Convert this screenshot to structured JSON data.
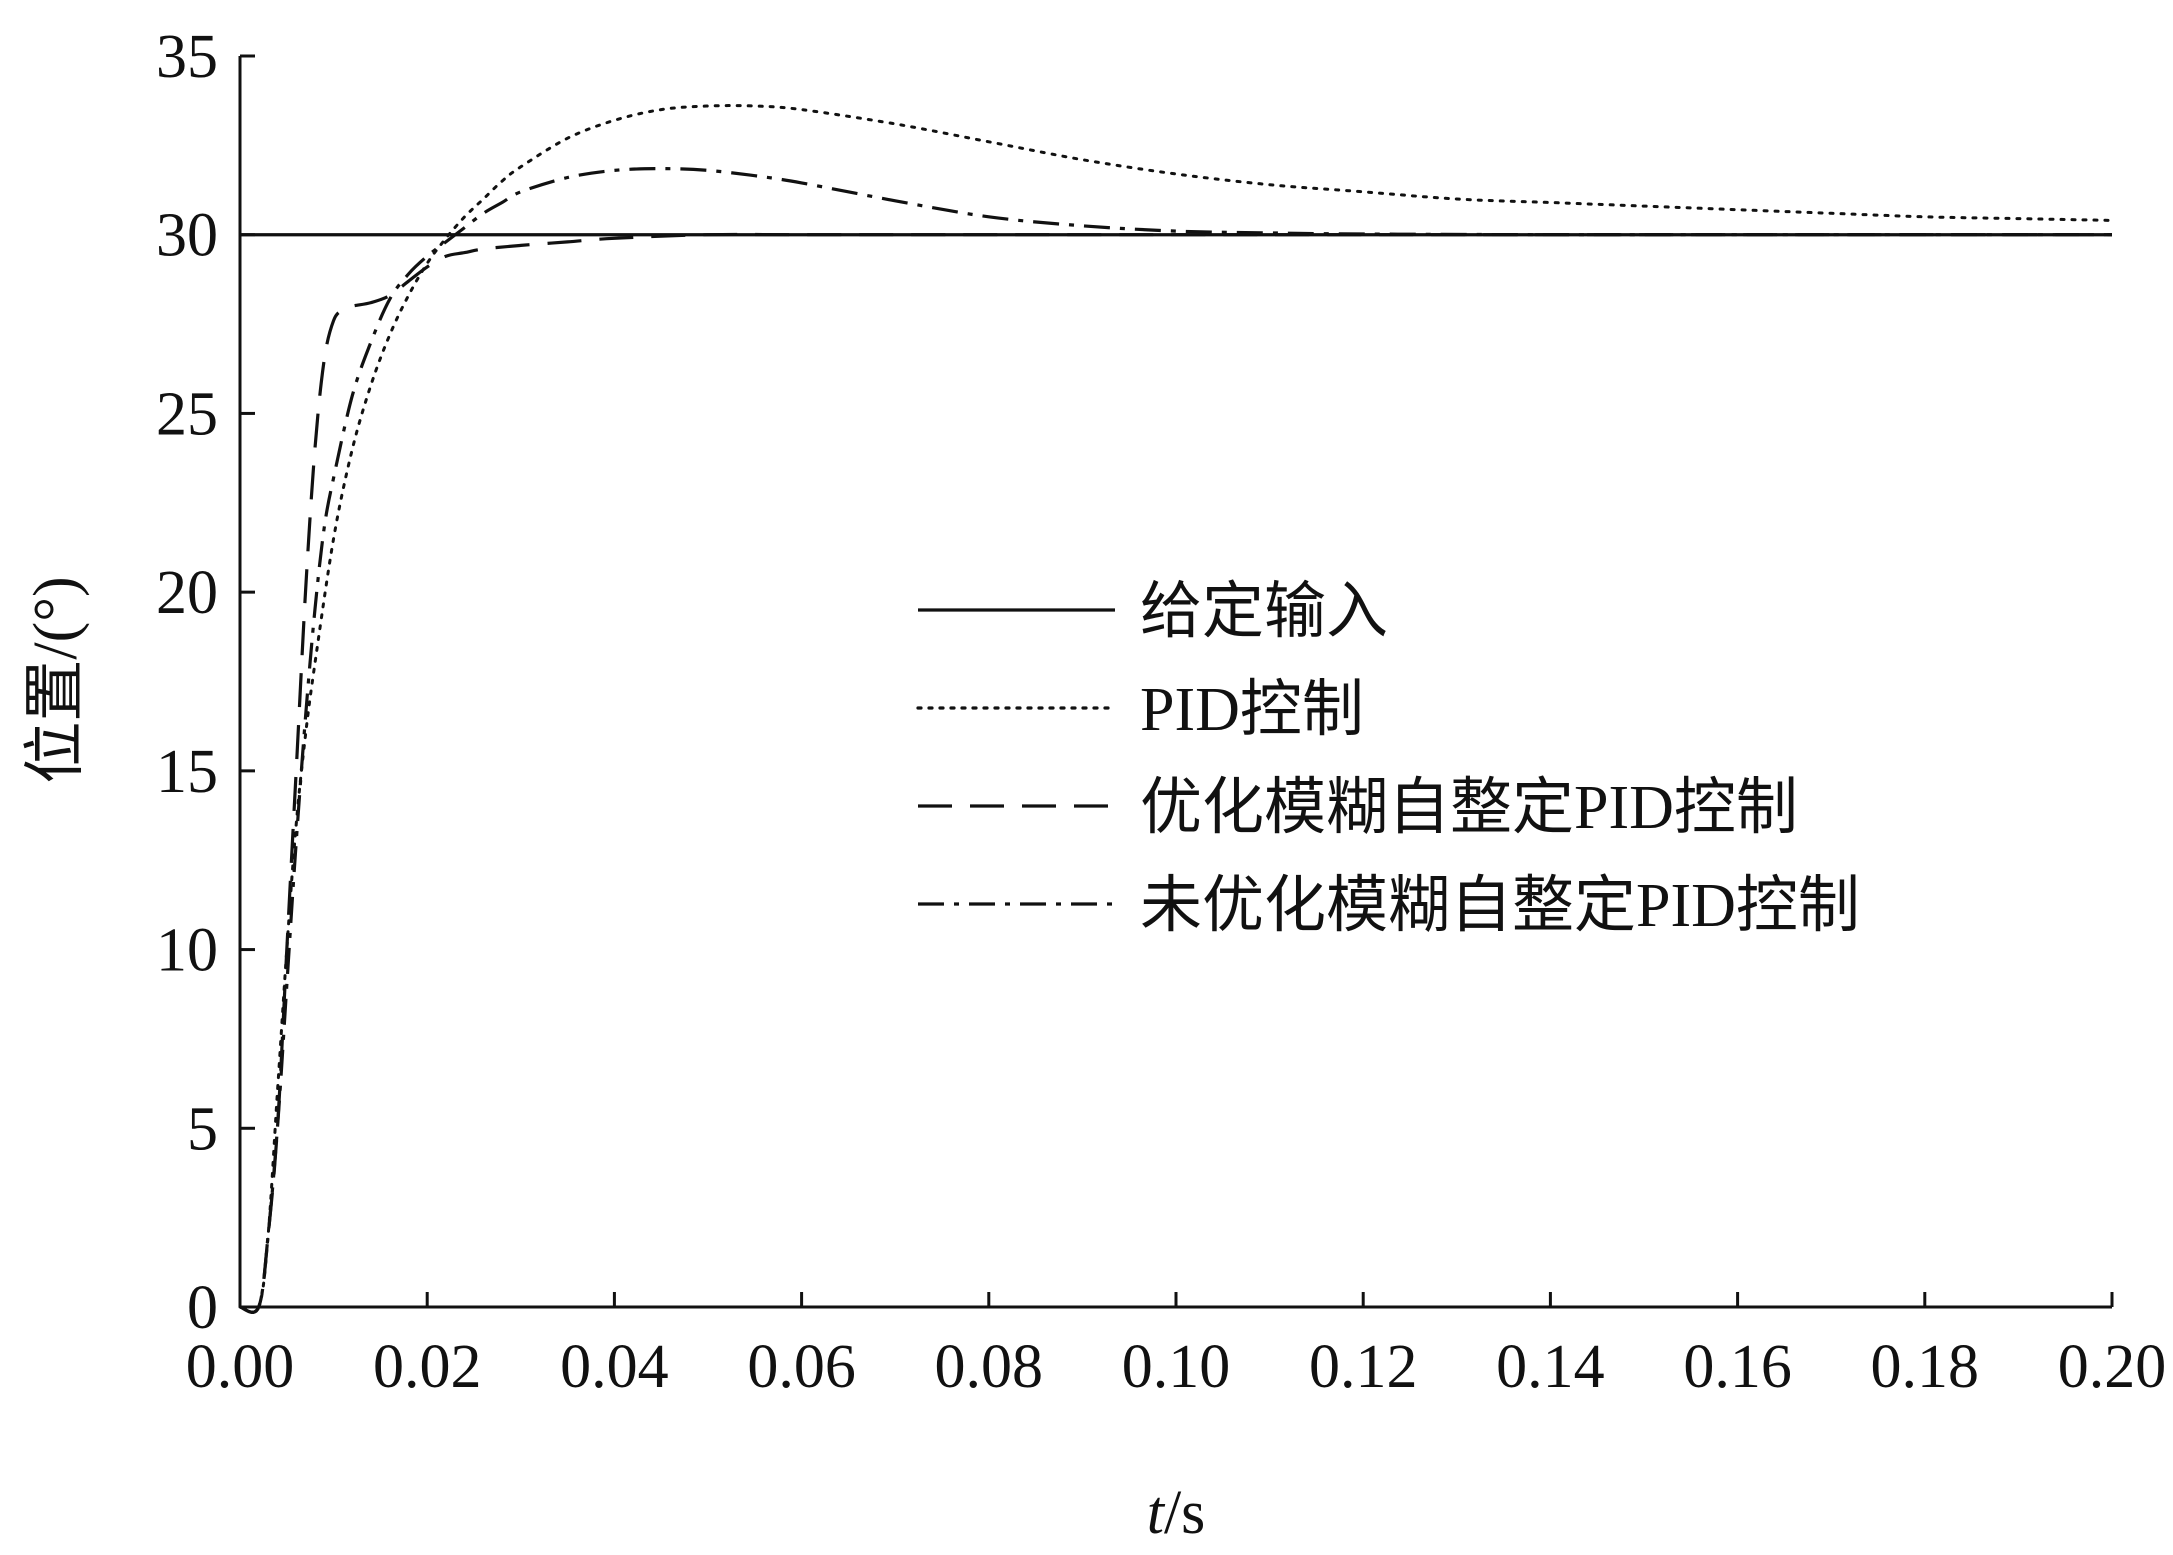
{
  "chart_data": {
    "type": "line",
    "xlabel_italic": "t",
    "xlabel_rest": "/s",
    "ylabel": "位置/(°)",
    "xlim": [
      0,
      0.2
    ],
    "ylim": [
      0,
      35
    ],
    "xticks": [
      "0.00",
      "0.02",
      "0.04",
      "0.06",
      "0.08",
      "0.10",
      "0.12",
      "0.14",
      "0.16",
      "0.18",
      "0.20"
    ],
    "yticks": [
      "0",
      "5",
      "10",
      "15",
      "20",
      "25",
      "30",
      "35"
    ],
    "grid": false,
    "legend_position": "center-right",
    "series": [
      {
        "name": "给定输入",
        "style": "solid",
        "x": [
          0,
          0.2
        ],
        "y": [
          30,
          30
        ]
      },
      {
        "name": "PID控制",
        "style": "dotted",
        "x": [
          0,
          0.002,
          0.003,
          0.004,
          0.005,
          0.006,
          0.007,
          0.008,
          0.01,
          0.012,
          0.014,
          0.016,
          0.018,
          0.02,
          0.022,
          0.024,
          0.026,
          0.028,
          0.03,
          0.035,
          0.04,
          0.045,
          0.05,
          0.055,
          0.06,
          0.07,
          0.08,
          0.09,
          0.1,
          0.11,
          0.12,
          0.13,
          0.14,
          0.15,
          0.16,
          0.17,
          0.18,
          0.19,
          0.2
        ],
        "y": [
          0,
          0,
          2,
          6,
          10,
          13.5,
          16,
          18,
          21.5,
          24,
          25.8,
          27.2,
          28.3,
          29.2,
          29.9,
          30.5,
          31,
          31.5,
          31.9,
          32.7,
          33.2,
          33.5,
          33.6,
          33.6,
          33.5,
          33.1,
          32.6,
          32.1,
          31.7,
          31.4,
          31.2,
          31.0,
          30.9,
          30.8,
          30.7,
          30.6,
          30.5,
          30.45,
          30.4
        ]
      },
      {
        "name": "优化模糊自整定PID控制",
        "style": "dashed",
        "x": [
          0,
          0.002,
          0.003,
          0.004,
          0.005,
          0.006,
          0.007,
          0.008,
          0.009,
          0.01,
          0.011,
          0.012,
          0.014,
          0.016,
          0.018,
          0.02,
          0.022,
          0.024,
          0.026,
          0.03,
          0.035,
          0.04,
          0.05,
          0.06,
          0.08,
          0.1,
          0.12,
          0.15,
          0.2
        ],
        "y": [
          0,
          0,
          2,
          5,
          10,
          15,
          20,
          24,
          26.5,
          27.6,
          27.9,
          28.0,
          28.1,
          28.3,
          28.7,
          29.1,
          29.4,
          29.5,
          29.6,
          29.7,
          29.8,
          29.9,
          30,
          30,
          30,
          30,
          30,
          30,
          30
        ]
      },
      {
        "name": "未优化模糊自整定PID控制",
        "style": "dashdot",
        "x": [
          0,
          0.002,
          0.003,
          0.004,
          0.005,
          0.006,
          0.007,
          0.008,
          0.009,
          0.01,
          0.012,
          0.014,
          0.016,
          0.018,
          0.02,
          0.022,
          0.024,
          0.026,
          0.028,
          0.03,
          0.035,
          0.04,
          0.045,
          0.05,
          0.055,
          0.06,
          0.07,
          0.08,
          0.09,
          0.1,
          0.11,
          0.12,
          0.14,
          0.16,
          0.2
        ],
        "y": [
          0,
          0,
          2,
          5,
          9,
          13,
          16.5,
          19.5,
          21.8,
          23.2,
          25.5,
          27,
          28.2,
          28.9,
          29.4,
          29.8,
          30.2,
          30.6,
          30.9,
          31.2,
          31.6,
          31.8,
          31.85,
          31.8,
          31.65,
          31.45,
          30.95,
          30.5,
          30.25,
          30.1,
          30.05,
          30.02,
          30,
          30,
          30
        ]
      }
    ]
  }
}
